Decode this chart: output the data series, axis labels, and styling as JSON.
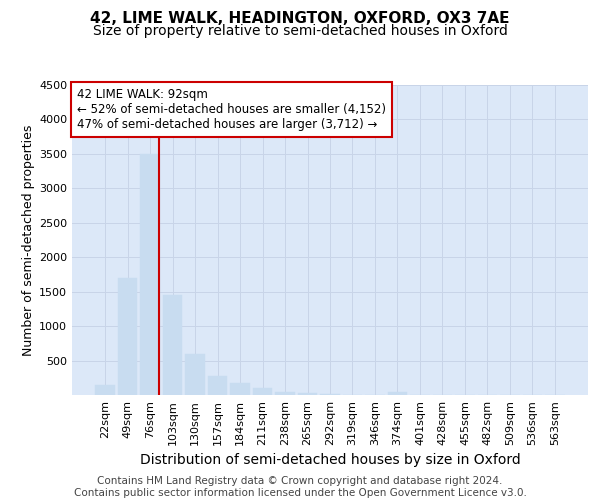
{
  "title": "42, LIME WALK, HEADINGTON, OXFORD, OX3 7AE",
  "subtitle": "Size of property relative to semi-detached houses in Oxford",
  "xlabel": "Distribution of semi-detached houses by size in Oxford",
  "ylabel": "Number of semi-detached properties",
  "categories": [
    "22sqm",
    "49sqm",
    "76sqm",
    "103sqm",
    "130sqm",
    "157sqm",
    "184sqm",
    "211sqm",
    "238sqm",
    "265sqm",
    "292sqm",
    "319sqm",
    "346sqm",
    "374sqm",
    "401sqm",
    "428sqm",
    "455sqm",
    "482sqm",
    "509sqm",
    "536sqm",
    "563sqm"
  ],
  "values": [
    150,
    1700,
    3500,
    1450,
    600,
    270,
    170,
    100,
    50,
    30,
    10,
    5,
    5,
    40,
    0,
    0,
    0,
    0,
    0,
    0,
    0
  ],
  "bar_color": "#c8dcf0",
  "bar_edge_color": "#c8dcf0",
  "pct_smaller": 52,
  "count_smaller": 4152,
  "pct_larger": 47,
  "count_larger": 3712,
  "annotation_box_color": "#ffffff",
  "annotation_box_edge": "#cc0000",
  "vline_color": "#cc0000",
  "ylim": [
    0,
    4500
  ],
  "yticks": [
    0,
    500,
    1000,
    1500,
    2000,
    2500,
    3000,
    3500,
    4000,
    4500
  ],
  "grid_color": "#c8d4e8",
  "background_color": "#dce8f8",
  "footer_text": "Contains HM Land Registry data © Crown copyright and database right 2024.\nContains public sector information licensed under the Open Government Licence v3.0.",
  "title_fontsize": 11,
  "subtitle_fontsize": 10,
  "xlabel_fontsize": 10,
  "ylabel_fontsize": 9,
  "tick_fontsize": 8,
  "footer_fontsize": 7.5,
  "annot_fontsize": 8.5
}
